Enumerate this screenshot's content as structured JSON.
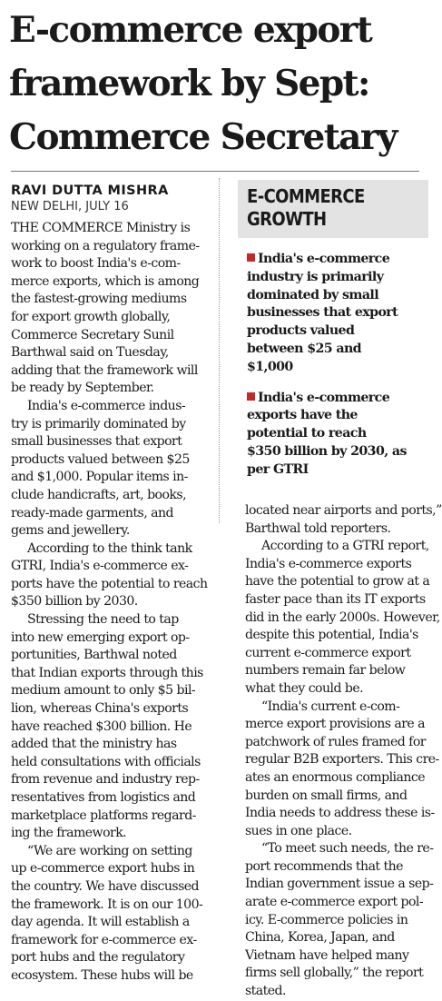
{
  "headline": {
    "lines": [
      "E-commerce export",
      "framework by Sept:",
      "Commerce Secretary"
    ]
  },
  "byline": {
    "author": "RAVI DUTTA MISHRA",
    "place_date": "NEW DELHI, JULY 16"
  },
  "sidebar": {
    "heading_lines": [
      "E-COMMERCE",
      "GROWTH"
    ],
    "items": [
      {
        "lines": [
          "India's e-commerce",
          "industry is primarily",
          "dominated by small",
          "businesses that export",
          "products valued",
          "between $25 and",
          "$1,000"
        ]
      },
      {
        "lines": [
          "India's e-commerce",
          "exports have the",
          "potential to reach",
          "$350 billion by 2030, as",
          "per GTRI"
        ]
      }
    ],
    "bullet_color": "#c62828"
  },
  "left_column": {
    "p1": [
      "THE COMMERCE Ministry is",
      "working on a regulatory frame-",
      "work to boost India's e-com-",
      "merce exports, which is among",
      "the fastest-growing mediums",
      "for export growth globally,",
      "Commerce Secretary Sunil",
      "Barthwal said on Tuesday,",
      "adding that the framework will",
      "be ready by September."
    ],
    "p2": [
      "India's e-commerce indus-",
      "try is primarily dominated by",
      "small businesses that export",
      "products valued between $25",
      "and $1,000. Popular items in-",
      "clude handicrafts, art, books,",
      "ready-made garments, and",
      "gems and jewellery."
    ],
    "p3": [
      "According to the think tank",
      "GTRI, India's e-commerce ex-",
      "ports have the potential to reach",
      "$350 billion by 2030."
    ],
    "p4": [
      "Stressing the need to tap",
      "into new emerging export op-",
      "portunities, Barthwal noted",
      "that Indian exports through this",
      "medium amount to only $5 bil-",
      "lion, whereas China's exports",
      "have reached $300 billion. He",
      "added that the ministry has",
      "held consultations with officials",
      "from revenue and industry rep-",
      "resentatives from logistics and",
      "marketplace platforms regard-",
      "ing the framework."
    ],
    "p5": [
      "“We are working on setting",
      "up e-commerce export hubs in",
      "the country. We have discussed",
      "the framework. It is on our 100-",
      "day agenda. It will establish a",
      "framework for e-commerce ex-",
      "port hubs and the regulatory",
      "ecosystem. These hubs will be"
    ]
  },
  "right_column": {
    "p1": [
      "located near airports and ports,”",
      "Barthwal told reporters."
    ],
    "p2": [
      "According to a GTRI report,",
      "India's e-commerce exports",
      "have the potential to grow at a",
      "faster pace than its IT exports",
      "did in the early 2000s. However,",
      "despite this potential, India's",
      "current e-commerce export",
      "numbers remain far below",
      "what they could be."
    ],
    "p3": [
      "“India's current e-com-",
      "merce export provisions are a",
      "patchwork of rules framed for",
      "regular B2B exporters. This cre-",
      "ates an enormous compliance",
      "burden on small firms, and",
      "India needs to address these is-",
      "sues in one place."
    ],
    "p4": [
      "“To meet such needs, the re-",
      "port recommends that the",
      "Indian government issue a sep-",
      "arate e-commerce export pol-",
      "icy. E-commerce policies in",
      "China, Korea, Japan, and",
      "Vietnam have helped many",
      "firms sell globally,” the report",
      "stated."
    ]
  },
  "colors": {
    "highlight": "#f5ee4a",
    "sidebar_header_bg": "#e3e3e3",
    "text": "#1a1a1a"
  }
}
